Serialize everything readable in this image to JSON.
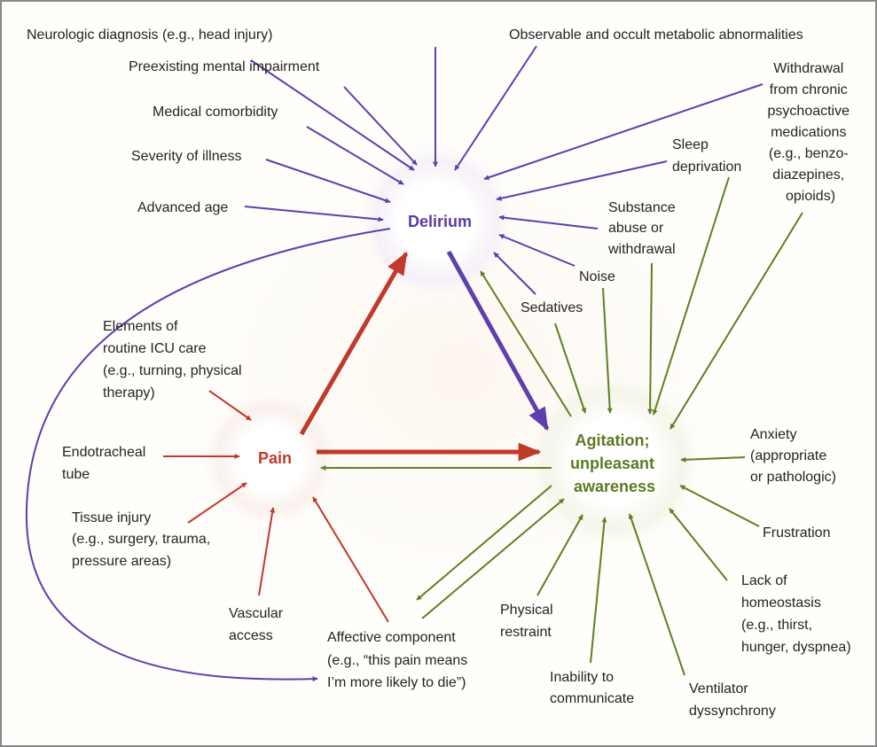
{
  "colors": {
    "purple": "#5d3fae",
    "red": "#c0392b",
    "green": "#5f7f24",
    "border": "#8a8a8a"
  },
  "nodes": {
    "delirium": "Delirium",
    "pain": "Pain",
    "agitation": [
      "Agitation;",
      "unpleasant",
      "awareness"
    ]
  },
  "delirium_causes": {
    "neurologic": "Neurologic diagnosis (e.g., head injury)",
    "preexisting": "Preexisting mental impairment",
    "comorbidity": "Medical comorbidity",
    "severity": "Severity of illness",
    "age": "Advanced age",
    "metabolic": "Observable and occult metabolic abnormalities",
    "withdrawal": [
      "Withdrawal",
      "from chronic",
      "psychoactive",
      "medications",
      "(e.g., benzo-",
      "diazepines,",
      "opioids)"
    ],
    "substance": [
      "Substance",
      "abuse or",
      "withdrawal"
    ]
  },
  "shared_causes": {
    "sleep": [
      "Sleep",
      "deprivation"
    ],
    "noise": "Noise",
    "sedatives": "Sedatives"
  },
  "pain_causes": {
    "icu_care": [
      "Elements of",
      "routine ICU care",
      "(e.g., turning, physical",
      "therapy)"
    ],
    "tube": [
      "Endotracheal",
      "tube"
    ],
    "tissue": [
      "Tissue injury",
      "(e.g., surgery, trauma,",
      "pressure areas)"
    ],
    "vascular": [
      "Vascular",
      "access"
    ],
    "affective": [
      "Affective component",
      "(e.g., “this pain means",
      "I’m more likely to die”)"
    ]
  },
  "agitation_causes": {
    "anxiety": [
      "Anxiety",
      "(appropriate",
      "or pathologic)"
    ],
    "frustration": "Frustration",
    "homeostasis": [
      "Lack of",
      "homeostasis",
      "(e.g., thirst,",
      "hunger, dyspnea)"
    ],
    "ventilator": [
      "Ventilator",
      "dyssynchrony"
    ],
    "communicate": [
      "Inability to",
      "communicate"
    ],
    "restraint": [
      "Physical",
      "restraint"
    ]
  }
}
